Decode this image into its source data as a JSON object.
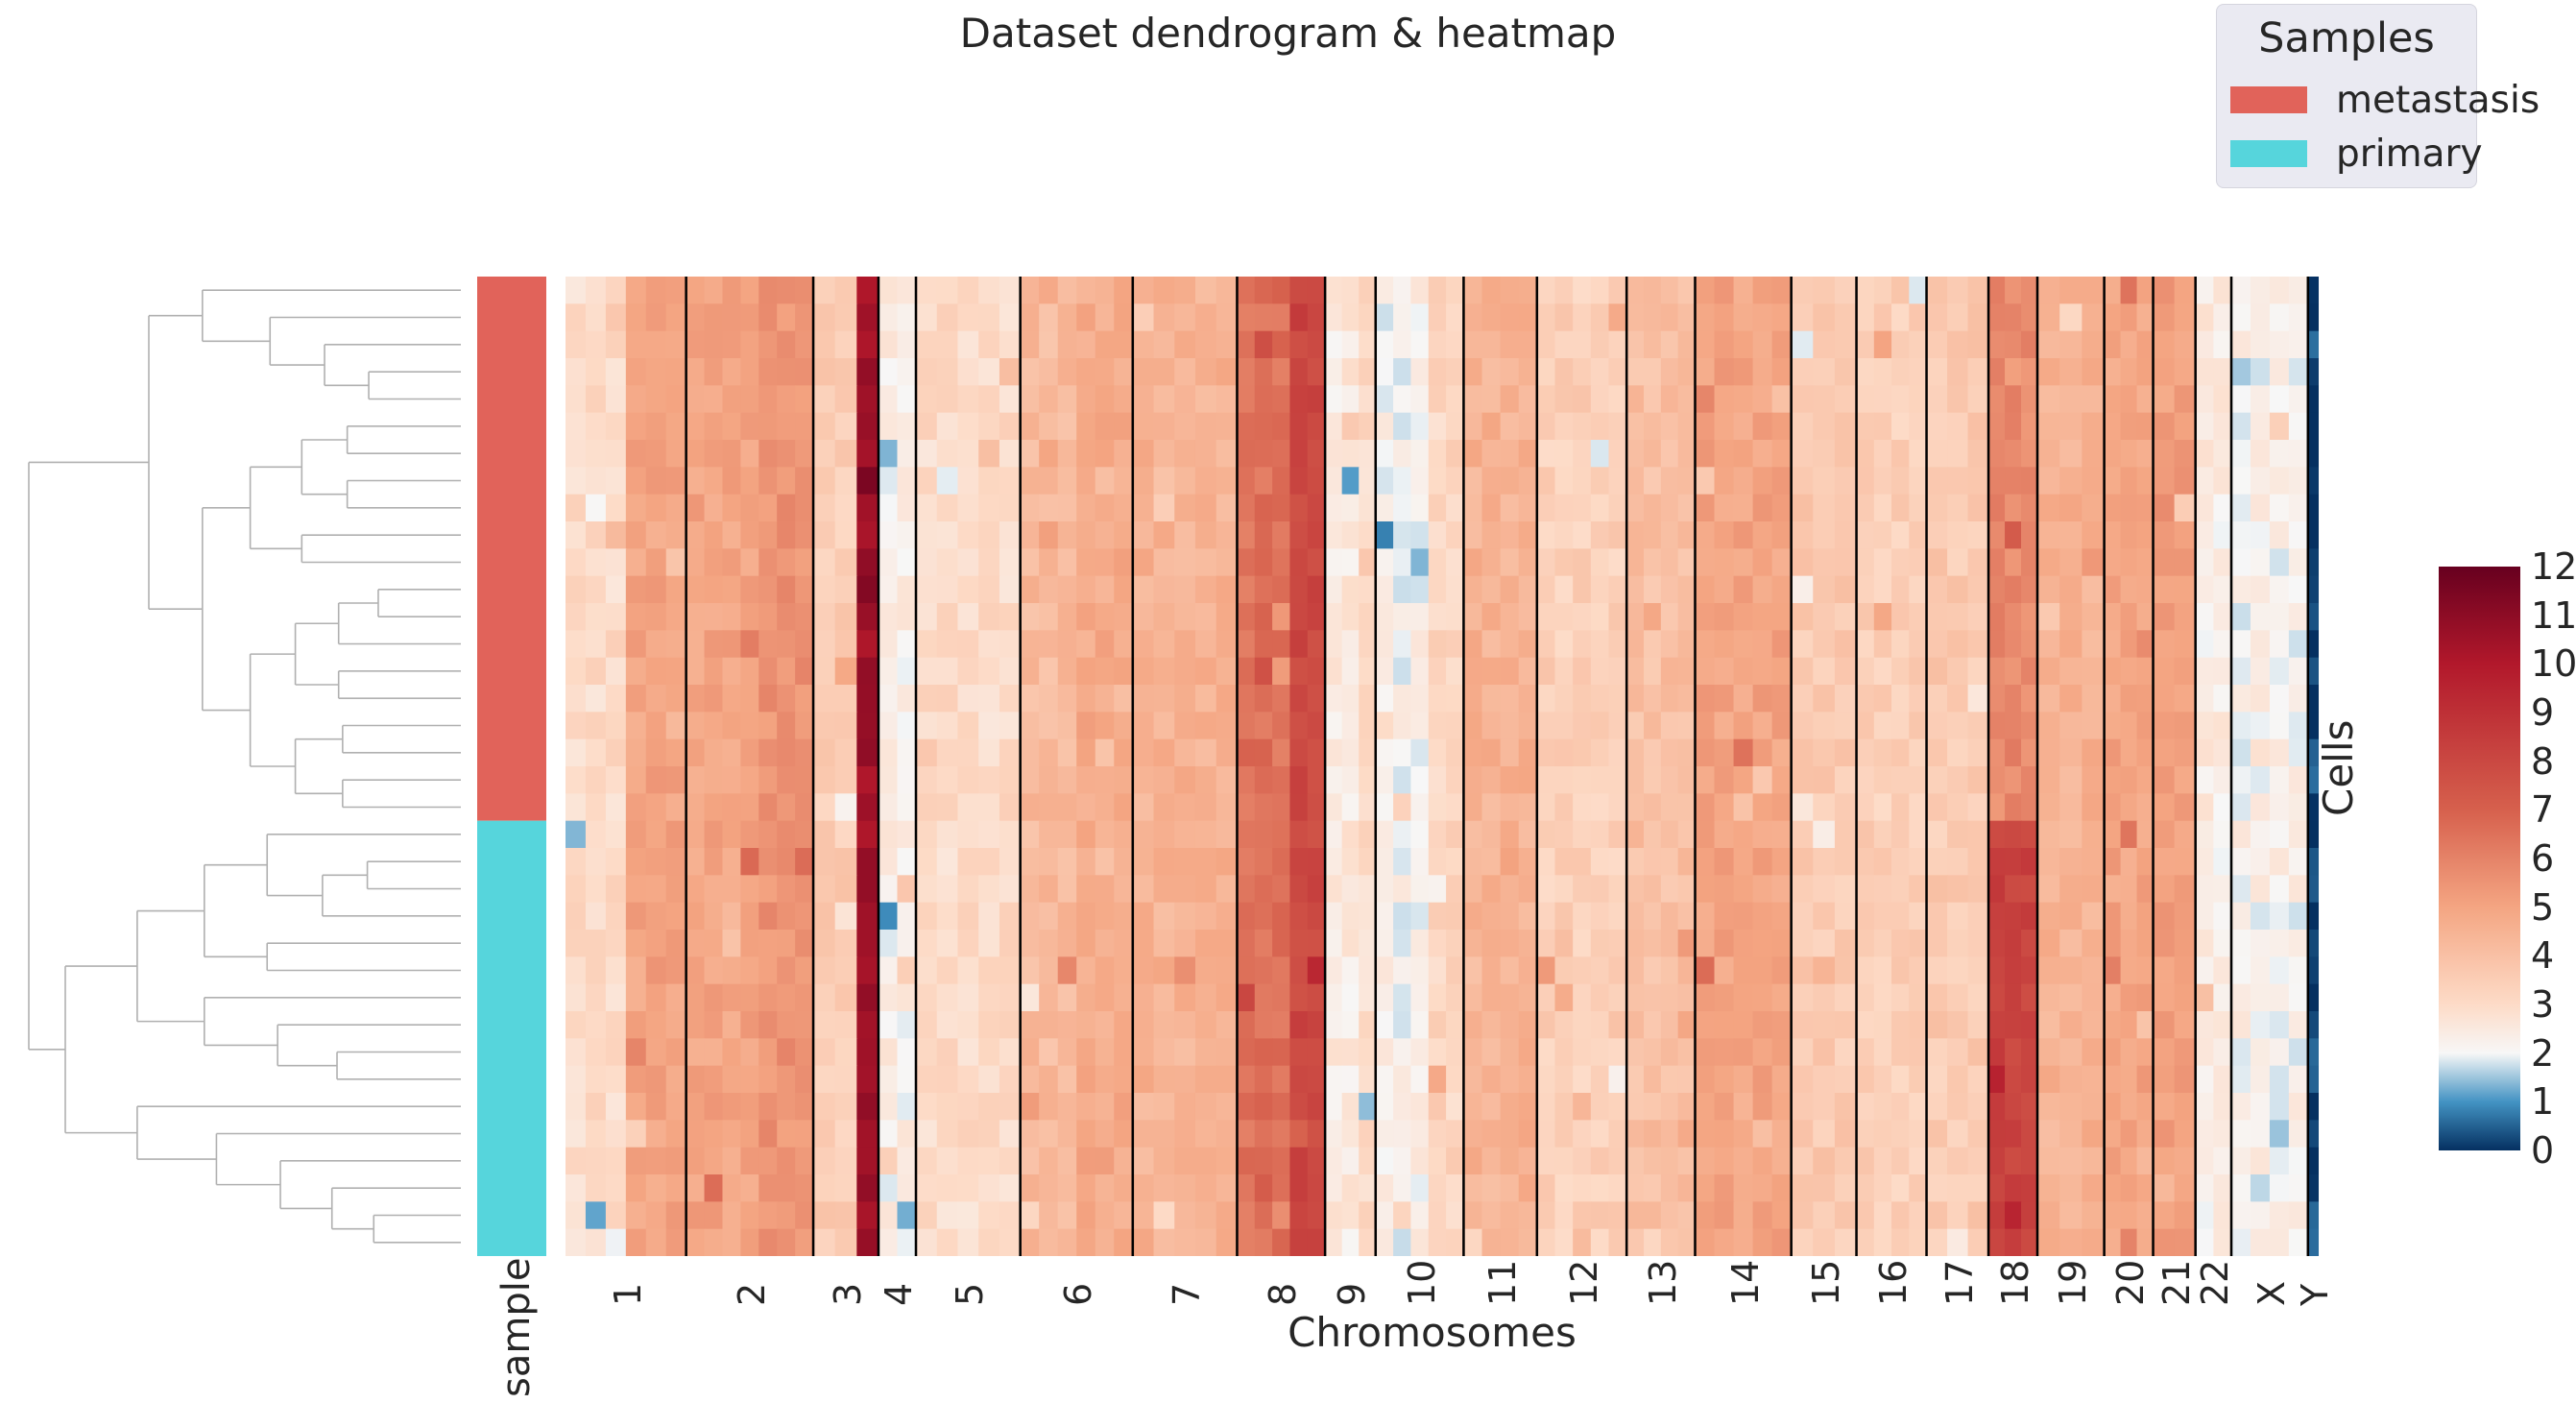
{
  "chart_data": {
    "type": "heatmap",
    "title": "Dataset dendrogram & heatmap",
    "xlabel": "Chromosomes",
    "ylabel": "Cells",
    "row_annotation_label": "sample",
    "legend": {
      "title": "Samples",
      "placement": "top-right",
      "entries": [
        {
          "label": "metastasis",
          "color": "#e1635a"
        },
        {
          "label": "primary",
          "color": "#56d5dc"
        }
      ]
    },
    "chromosomes": [
      "1",
      "2",
      "3",
      "4",
      "5",
      "6",
      "7",
      "8",
      "9",
      "10",
      "11",
      "12",
      "13",
      "14",
      "15",
      "16",
      "17",
      "18",
      "19",
      "20",
      "21",
      "22",
      "X",
      "Y"
    ],
    "chromosome_widths": [
      74,
      78,
      40,
      23,
      64,
      69,
      64,
      54,
      31,
      54,
      45,
      55,
      42,
      59,
      40,
      43,
      38,
      30,
      41,
      30,
      26,
      22,
      47,
      6
    ],
    "chromosome_base_cn": [
      [
        3,
        5
      ],
      [
        5,
        5.5
      ],
      [
        3.5,
        10.5
      ],
      [
        2.3,
        2.3
      ],
      [
        3,
        3
      ],
      [
        4.2,
        4.8
      ],
      [
        4.5,
        4.5
      ],
      [
        6.5,
        8
      ],
      [
        2.5,
        3
      ],
      [
        2.2,
        3.2
      ],
      [
        4.5,
        4.5
      ],
      [
        3.4,
        3.4
      ],
      [
        4,
        4
      ],
      [
        5,
        5
      ],
      [
        3.6,
        3.6
      ],
      [
        3.4,
        3.4
      ],
      [
        3.6,
        3.6
      ],
      [
        5.8,
        8.2
      ],
      [
        4.5,
        4.5
      ],
      [
        5,
        5
      ],
      [
        5.2,
        5.2
      ],
      [
        2.4,
        2.4
      ],
      [
        2.2,
        2.2
      ],
      [
        0.2,
        0.2
      ]
    ],
    "samples": {
      "metastasis_cells": 20,
      "primary_cells": 16
    },
    "value_range": [
      0,
      12
    ],
    "colorbar": {
      "ticks": [
        0,
        1,
        2,
        3,
        4,
        5,
        6,
        7,
        8,
        9,
        10,
        11,
        12
      ],
      "colormap": "RdBu_r"
    },
    "grid": false
  }
}
